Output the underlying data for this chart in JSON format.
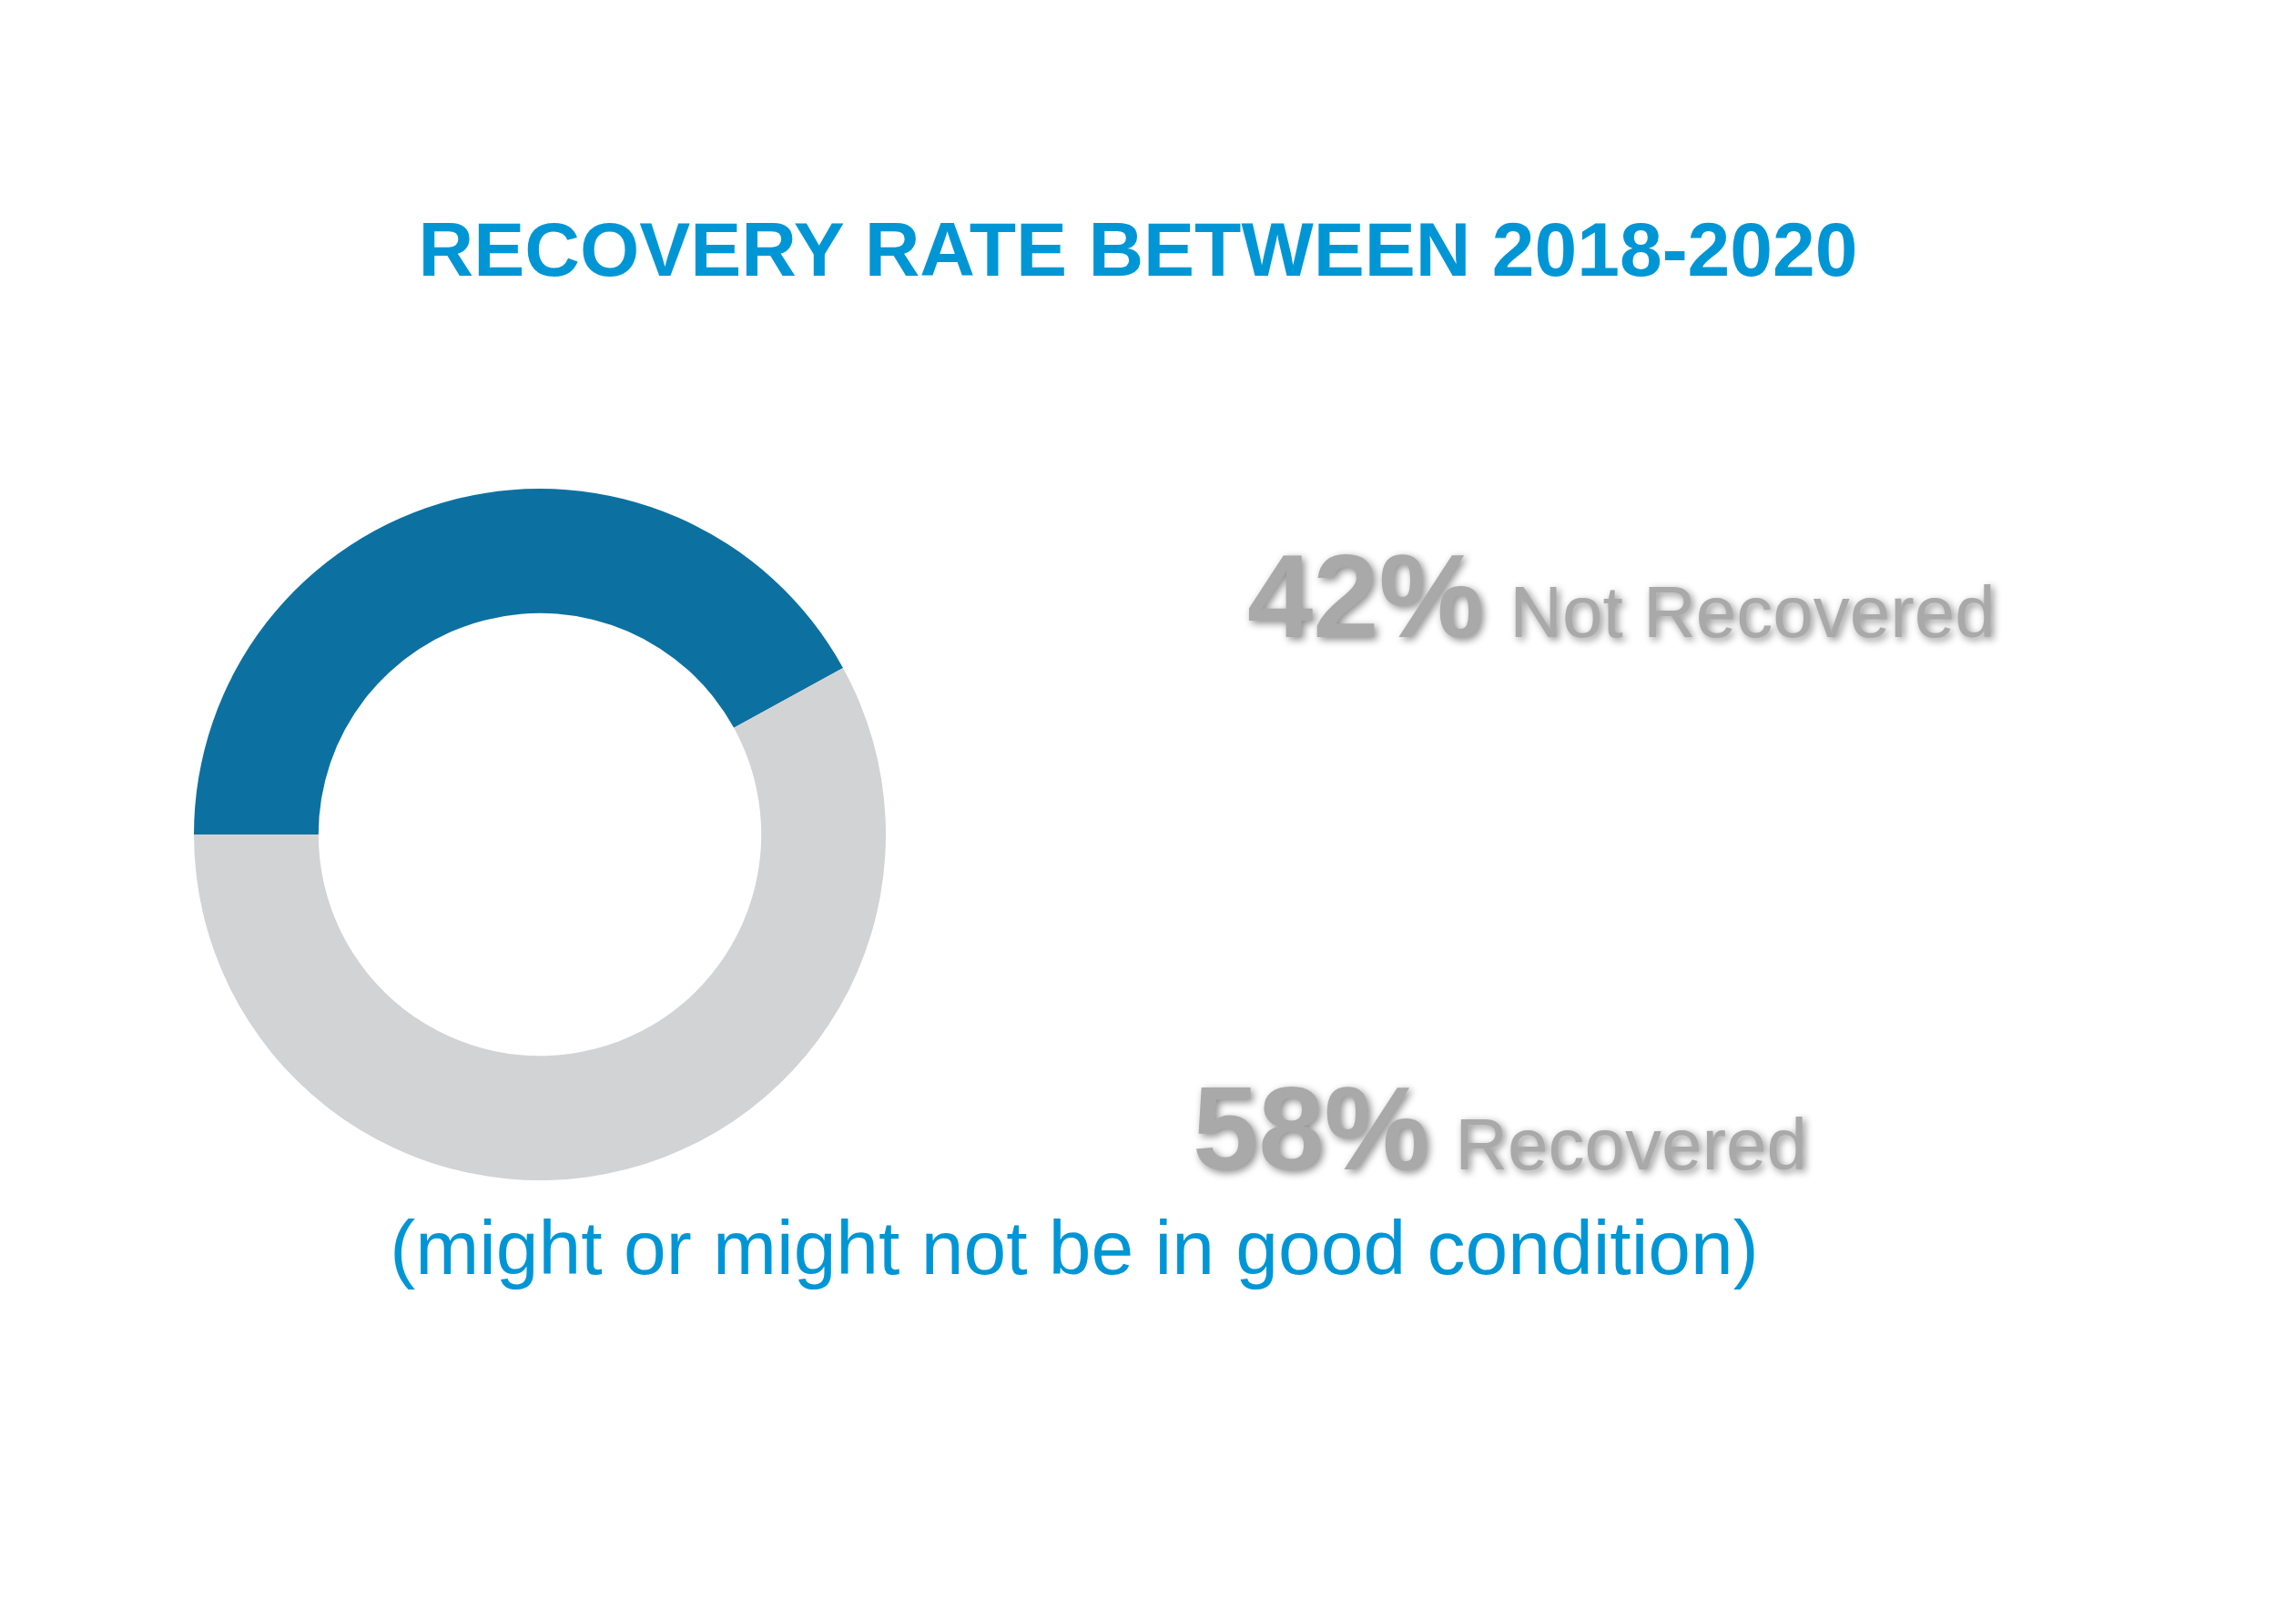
{
  "chart_data": {
    "type": "donut",
    "title": "RECOVERY RATE BETWEEN 2018-2020",
    "categories": [
      "Not Recovered",
      "Recovered"
    ],
    "values": [
      42,
      58
    ],
    "value_labels": [
      "42%",
      "58%"
    ],
    "colors": [
      "#0c71a1",
      "#d2d3d5"
    ],
    "annotations": [
      "(might or might not be in good condition)"
    ],
    "legend": false
  }
}
